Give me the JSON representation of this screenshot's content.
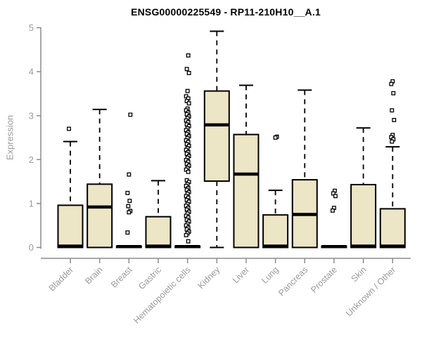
{
  "chart_data": {
    "type": "boxplot",
    "title": "ENSG00000225549 - RP11-210H10__A.1",
    "ylabel": "Expression",
    "xlabel": "",
    "ylim": [
      0,
      5
    ],
    "yticks": [
      0,
      1,
      2,
      3,
      4,
      5
    ],
    "grid": false,
    "legend": "none",
    "x_label_rotation": 45,
    "categories": [
      "Bladder",
      "Brain",
      "Breast",
      "Gastric",
      "Hematopoietic cells",
      "Kidney",
      "Liver",
      "Lung",
      "Pancreas",
      "Prostate",
      "Skin",
      "Unknown / Other"
    ],
    "series": [
      {
        "label": "Bladder",
        "whisker_low": 0,
        "q1": 0,
        "median": 0.03,
        "q3": 0.96,
        "whisker_high": 2.41,
        "outliers": [
          2.7
        ]
      },
      {
        "label": "Brain",
        "whisker_low": 0,
        "q1": 0,
        "median": 0.92,
        "q3": 1.44,
        "whisker_high": 3.14,
        "outliers": []
      },
      {
        "label": "Breast",
        "whisker_low": 0,
        "q1": 0,
        "median": 0.02,
        "q3": 0.03,
        "whisker_high": 0.03,
        "outliers": [
          3.02,
          1.66,
          1.24,
          1.06,
          0.94,
          0.83,
          0.8,
          0.34
        ]
      },
      {
        "label": "Gastric",
        "whisker_low": 0,
        "q1": 0,
        "median": 0.03,
        "q3": 0.7,
        "whisker_high": 1.52,
        "outliers": []
      },
      {
        "label": "Hematopoietic cells",
        "whisker_low": 0,
        "q1": 0,
        "median": 0.02,
        "q3": 0.03,
        "whisker_high": 0.03,
        "outliers": [
          4.37,
          4.06,
          3.97,
          3.56,
          3.44,
          3.39,
          3.33,
          3.28,
          3.16,
          3.12,
          3.07,
          3.03,
          2.98,
          2.94,
          2.89,
          2.85,
          2.8,
          2.76,
          2.71,
          2.67,
          2.62,
          2.58,
          2.53,
          2.49,
          2.44,
          2.4,
          2.35,
          2.31,
          2.26,
          2.22,
          2.17,
          2.13,
          2.08,
          2.04,
          1.99,
          1.95,
          1.9,
          1.86,
          1.81,
          1.77,
          1.72,
          1.53,
          1.49,
          1.44,
          1.4,
          1.35,
          1.31,
          1.26,
          1.22,
          1.17,
          1.13,
          1.08,
          1.04,
          0.99,
          0.95,
          0.9,
          0.86,
          0.81,
          0.77,
          0.72,
          0.68,
          0.63,
          0.59,
          0.54,
          0.5,
          0.45,
          0.41,
          0.36,
          0.32,
          0.28,
          0.14
        ]
      },
      {
        "label": "Kidney",
        "whisker_low": 0,
        "q1": 1.51,
        "median": 2.79,
        "q3": 3.56,
        "whisker_high": 4.92,
        "outliers": []
      },
      {
        "label": "Liver",
        "whisker_low": 0,
        "q1": 0,
        "median": 1.67,
        "q3": 2.57,
        "whisker_high": 3.69,
        "outliers": []
      },
      {
        "label": "Lung",
        "whisker_low": 0,
        "q1": 0,
        "median": 0.03,
        "q3": 0.74,
        "whisker_high": 1.3,
        "outliers": [
          2.52,
          2.5
        ]
      },
      {
        "label": "Pancreas",
        "whisker_low": 0,
        "q1": 0,
        "median": 0.75,
        "q3": 1.54,
        "whisker_high": 3.58,
        "outliers": []
      },
      {
        "label": "Prostate",
        "whisker_low": 0,
        "q1": 0,
        "median": 0.02,
        "q3": 0.03,
        "whisker_high": 0.03,
        "outliers": [
          1.29,
          1.23,
          1.17,
          0.9,
          0.84
        ]
      },
      {
        "label": "Skin",
        "whisker_low": 0,
        "q1": 0,
        "median": 0.03,
        "q3": 1.43,
        "whisker_high": 2.72,
        "outliers": []
      },
      {
        "label": "Unknown / Other",
        "whisker_low": 0,
        "q1": 0,
        "median": 0.03,
        "q3": 0.88,
        "whisker_high": 2.29,
        "outliers": [
          3.78,
          3.72,
          3.51,
          3.12,
          2.9,
          2.56,
          2.51,
          2.46,
          2.41
        ]
      }
    ]
  },
  "colors": {
    "box_fill": "#ece5c6",
    "box_stroke": "#000000",
    "median": "#000000",
    "whisker": "#000000",
    "outlier_stroke": "#000000",
    "outlier_fill": "#ffffff",
    "axis_line": "#8c8c8c",
    "axis_text": "#9b9b9b",
    "title_text": "#000000",
    "background": "#ffffff"
  }
}
